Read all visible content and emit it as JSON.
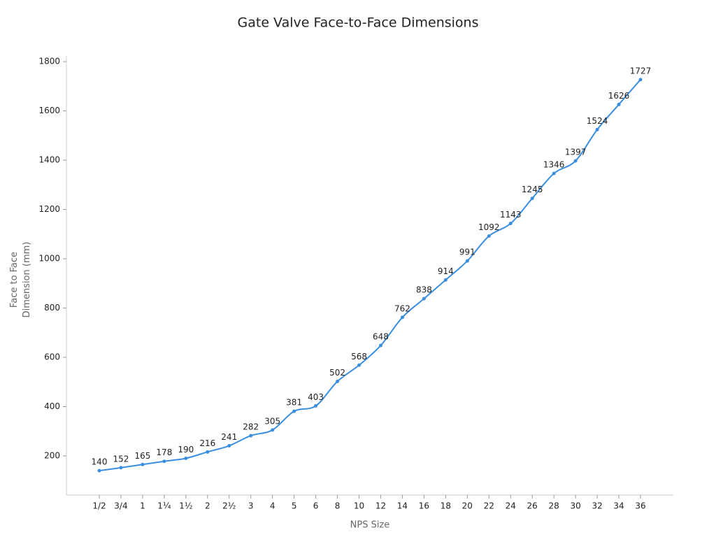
{
  "chart_data": {
    "type": "line",
    "title": "Gate Valve Face-to-Face Dimensions",
    "x_label": "NPS Size",
    "y_label": "Face to Face Dimension (mm)",
    "categories": [
      "1/2",
      "3/4",
      "1",
      "1¼",
      "1½",
      "2",
      "2½",
      "3",
      "4",
      "5",
      "6",
      "8",
      "10",
      "12",
      "14",
      "16",
      "18",
      "20",
      "22",
      "24",
      "26",
      "28",
      "30",
      "32",
      "34",
      "36"
    ],
    "values": [
      140,
      152,
      165,
      178,
      190,
      216,
      241,
      282,
      305,
      381,
      403,
      502,
      568,
      648,
      762,
      838,
      914,
      991,
      1092,
      1143,
      1245,
      1346,
      1397,
      1524,
      1626,
      1727
    ],
    "color": "#3a8ee0",
    "ylim": [
      41,
      1823
    ],
    "yticks": [
      200,
      400,
      600,
      800,
      1000,
      1200,
      1400,
      1600,
      1800
    ]
  }
}
